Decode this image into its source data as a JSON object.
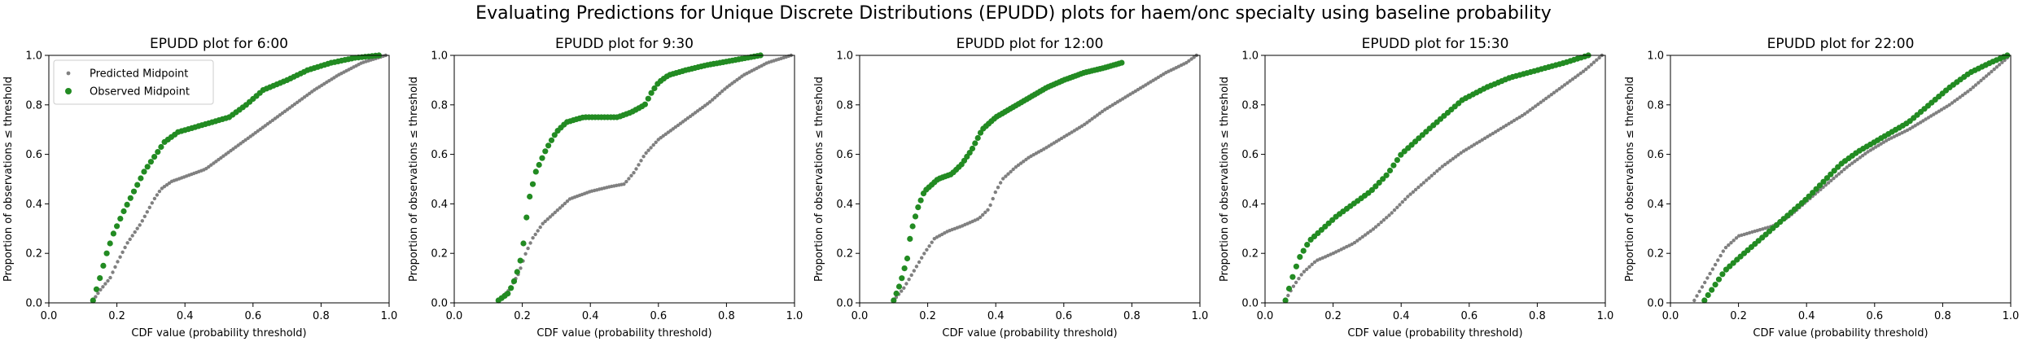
{
  "figure": {
    "suptitle": "Evaluating Predictions for Unique Discrete Distributions (EPUDD) plots for haem/onc specialty using baseline probability"
  },
  "colors": {
    "predicted": "#808080",
    "observed": "#228B22"
  },
  "chart_data": [
    {
      "type": "scatter",
      "title": "EPUDD plot for 6:00",
      "xlabel": "CDF value (probability threshold)",
      "ylabel": "Proportion of observations ≤ threshold",
      "xlim": [
        0,
        1
      ],
      "ylim": [
        0,
        1
      ],
      "xticks": [
        "0.0",
        "0.2",
        "0.4",
        "0.6",
        "0.8",
        "1.0"
      ],
      "yticks": [
        "0.0",
        "0.2",
        "0.4",
        "0.6",
        "0.8",
        "1.0"
      ],
      "legend": {
        "position": "upper-left",
        "entries": [
          "Predicted Midpoint",
          "Observed Midpoint"
        ]
      },
      "series": [
        {
          "name": "Predicted Midpoint",
          "knots": [
            [
              0.13,
              0.01
            ],
            [
              0.15,
              0.05
            ],
            [
              0.18,
              0.1
            ],
            [
              0.2,
              0.16
            ],
            [
              0.23,
              0.24
            ],
            [
              0.27,
              0.32
            ],
            [
              0.31,
              0.42
            ],
            [
              0.33,
              0.46
            ],
            [
              0.36,
              0.49
            ],
            [
              0.4,
              0.51
            ],
            [
              0.46,
              0.54
            ],
            [
              0.5,
              0.58
            ],
            [
              0.55,
              0.63
            ],
            [
              0.6,
              0.68
            ],
            [
              0.66,
              0.74
            ],
            [
              0.72,
              0.8
            ],
            [
              0.78,
              0.86
            ],
            [
              0.85,
              0.92
            ],
            [
              0.92,
              0.97
            ],
            [
              0.99,
              1.0
            ]
          ]
        },
        {
          "name": "Observed Midpoint",
          "knots": [
            [
              0.13,
              0.01
            ],
            [
              0.15,
              0.1
            ],
            [
              0.17,
              0.2
            ],
            [
              0.19,
              0.28
            ],
            [
              0.22,
              0.37
            ],
            [
              0.25,
              0.45
            ],
            [
              0.28,
              0.53
            ],
            [
              0.31,
              0.59
            ],
            [
              0.34,
              0.65
            ],
            [
              0.38,
              0.69
            ],
            [
              0.43,
              0.71
            ],
            [
              0.48,
              0.73
            ],
            [
              0.53,
              0.75
            ],
            [
              0.58,
              0.8
            ],
            [
              0.63,
              0.86
            ],
            [
              0.7,
              0.9
            ],
            [
              0.76,
              0.94
            ],
            [
              0.83,
              0.97
            ],
            [
              0.9,
              0.99
            ],
            [
              0.97,
              1.0
            ]
          ]
        }
      ]
    },
    {
      "type": "scatter",
      "title": "EPUDD plot for 9:30",
      "xlabel": "CDF value (probability threshold)",
      "ylabel": "Proportion of observations ≤ threshold",
      "xlim": [
        0,
        1
      ],
      "ylim": [
        0,
        1
      ],
      "xticks": [
        "0.0",
        "0.2",
        "0.4",
        "0.6",
        "0.8",
        "1.0"
      ],
      "yticks": [
        "0.0",
        "0.2",
        "0.4",
        "0.6",
        "0.8",
        "1.0"
      ],
      "series": [
        {
          "name": "Predicted Midpoint",
          "knots": [
            [
              0.13,
              0.01
            ],
            [
              0.16,
              0.05
            ],
            [
              0.19,
              0.12
            ],
            [
              0.21,
              0.2
            ],
            [
              0.23,
              0.26
            ],
            [
              0.26,
              0.32
            ],
            [
              0.3,
              0.37
            ],
            [
              0.34,
              0.42
            ],
            [
              0.4,
              0.45
            ],
            [
              0.46,
              0.47
            ],
            [
              0.5,
              0.48
            ],
            [
              0.53,
              0.53
            ],
            [
              0.56,
              0.6
            ],
            [
              0.6,
              0.66
            ],
            [
              0.65,
              0.71
            ],
            [
              0.7,
              0.76
            ],
            [
              0.75,
              0.81
            ],
            [
              0.8,
              0.87
            ],
            [
              0.85,
              0.92
            ],
            [
              0.92,
              0.97
            ],
            [
              0.99,
              1.0
            ]
          ]
        },
        {
          "name": "Observed Midpoint",
          "knots": [
            [
              0.13,
              0.01
            ],
            [
              0.16,
              0.04
            ],
            [
              0.18,
              0.1
            ],
            [
              0.2,
              0.2
            ],
            [
              0.21,
              0.32
            ],
            [
              0.22,
              0.42
            ],
            [
              0.24,
              0.53
            ],
            [
              0.27,
              0.62
            ],
            [
              0.3,
              0.69
            ],
            [
              0.33,
              0.73
            ],
            [
              0.38,
              0.75
            ],
            [
              0.48,
              0.75
            ],
            [
              0.52,
              0.77
            ],
            [
              0.56,
              0.8
            ],
            [
              0.58,
              0.85
            ],
            [
              0.6,
              0.89
            ],
            [
              0.63,
              0.92
            ],
            [
              0.68,
              0.94
            ],
            [
              0.74,
              0.96
            ],
            [
              0.82,
              0.98
            ],
            [
              0.9,
              1.0
            ]
          ]
        }
      ]
    },
    {
      "type": "scatter",
      "title": "EPUDD plot for 12:00",
      "xlabel": "CDF value (probability threshold)",
      "ylabel": "Proportion of observations ≤ threshold",
      "xlim": [
        0,
        1
      ],
      "ylim": [
        0,
        1
      ],
      "xticks": [
        "0.0",
        "0.2",
        "0.4",
        "0.6",
        "0.8",
        "1.0"
      ],
      "yticks": [
        "0.0",
        "0.2",
        "0.4",
        "0.6",
        "0.8",
        "1.0"
      ],
      "series": [
        {
          "name": "Predicted Midpoint",
          "knots": [
            [
              0.1,
              0.01
            ],
            [
              0.13,
              0.06
            ],
            [
              0.16,
              0.13
            ],
            [
              0.19,
              0.2
            ],
            [
              0.22,
              0.26
            ],
            [
              0.26,
              0.29
            ],
            [
              0.3,
              0.31
            ],
            [
              0.35,
              0.34
            ],
            [
              0.38,
              0.38
            ],
            [
              0.4,
              0.45
            ],
            [
              0.42,
              0.5
            ],
            [
              0.46,
              0.55
            ],
            [
              0.5,
              0.59
            ],
            [
              0.54,
              0.62
            ],
            [
              0.6,
              0.67
            ],
            [
              0.66,
              0.72
            ],
            [
              0.72,
              0.78
            ],
            [
              0.78,
              0.83
            ],
            [
              0.84,
              0.88
            ],
            [
              0.9,
              0.93
            ],
            [
              0.96,
              0.97
            ],
            [
              0.99,
              1.0
            ]
          ]
        },
        {
          "name": "Observed Midpoint",
          "knots": [
            [
              0.1,
              0.01
            ],
            [
              0.12,
              0.08
            ],
            [
              0.14,
              0.18
            ],
            [
              0.15,
              0.28
            ],
            [
              0.17,
              0.38
            ],
            [
              0.19,
              0.45
            ],
            [
              0.23,
              0.5
            ],
            [
              0.27,
              0.52
            ],
            [
              0.3,
              0.56
            ],
            [
              0.33,
              0.62
            ],
            [
              0.36,
              0.7
            ],
            [
              0.4,
              0.75
            ],
            [
              0.45,
              0.79
            ],
            [
              0.5,
              0.83
            ],
            [
              0.55,
              0.87
            ],
            [
              0.6,
              0.9
            ],
            [
              0.66,
              0.93
            ],
            [
              0.72,
              0.95
            ],
            [
              0.77,
              0.97
            ]
          ]
        }
      ]
    },
    {
      "type": "scatter",
      "title": "EPUDD plot for 15:30",
      "xlabel": "CDF value (probability threshold)",
      "ylabel": "Proportion of observations ≤ threshold",
      "xlim": [
        0,
        1
      ],
      "ylim": [
        0,
        1
      ],
      "xticks": [
        "0.0",
        "0.2",
        "0.4",
        "0.6",
        "0.8",
        "1.0"
      ],
      "yticks": [
        "0.0",
        "0.2",
        "0.4",
        "0.6",
        "0.8",
        "1.0"
      ],
      "series": [
        {
          "name": "Predicted Midpoint",
          "knots": [
            [
              0.06,
              0.01
            ],
            [
              0.08,
              0.06
            ],
            [
              0.11,
              0.12
            ],
            [
              0.15,
              0.17
            ],
            [
              0.2,
              0.2
            ],
            [
              0.26,
              0.24
            ],
            [
              0.32,
              0.3
            ],
            [
              0.37,
              0.36
            ],
            [
              0.42,
              0.43
            ],
            [
              0.47,
              0.49
            ],
            [
              0.52,
              0.55
            ],
            [
              0.58,
              0.61
            ],
            [
              0.64,
              0.66
            ],
            [
              0.7,
              0.71
            ],
            [
              0.76,
              0.76
            ],
            [
              0.82,
              0.82
            ],
            [
              0.88,
              0.88
            ],
            [
              0.94,
              0.94
            ],
            [
              0.99,
              1.0
            ]
          ]
        },
        {
          "name": "Observed Midpoint",
          "knots": [
            [
              0.06,
              0.01
            ],
            [
              0.08,
              0.1
            ],
            [
              0.1,
              0.18
            ],
            [
              0.13,
              0.25
            ],
            [
              0.17,
              0.3
            ],
            [
              0.21,
              0.35
            ],
            [
              0.26,
              0.4
            ],
            [
              0.31,
              0.45
            ],
            [
              0.36,
              0.52
            ],
            [
              0.4,
              0.6
            ],
            [
              0.44,
              0.65
            ],
            [
              0.48,
              0.7
            ],
            [
              0.53,
              0.76
            ],
            [
              0.58,
              0.82
            ],
            [
              0.65,
              0.87
            ],
            [
              0.72,
              0.91
            ],
            [
              0.8,
              0.94
            ],
            [
              0.88,
              0.97
            ],
            [
              0.95,
              1.0
            ]
          ]
        }
      ]
    },
    {
      "type": "scatter",
      "title": "EPUDD plot for 22:00",
      "xlabel": "CDF value (probability threshold)",
      "ylabel": "Proportion of observations ≤ threshold",
      "xlim": [
        0,
        1
      ],
      "ylim": [
        0,
        1
      ],
      "xticks": [
        "0.0",
        "0.2",
        "0.4",
        "0.6",
        "0.8",
        "1.0"
      ],
      "yticks": [
        "0.0",
        "0.2",
        "0.4",
        "0.6",
        "0.8",
        "1.0"
      ],
      "series": [
        {
          "name": "Predicted Midpoint",
          "knots": [
            [
              0.07,
              0.01
            ],
            [
              0.1,
              0.08
            ],
            [
              0.13,
              0.15
            ],
            [
              0.16,
              0.22
            ],
            [
              0.2,
              0.27
            ],
            [
              0.25,
              0.29
            ],
            [
              0.3,
              0.31
            ],
            [
              0.35,
              0.35
            ],
            [
              0.4,
              0.41
            ],
            [
              0.46,
              0.48
            ],
            [
              0.52,
              0.55
            ],
            [
              0.58,
              0.61
            ],
            [
              0.64,
              0.66
            ],
            [
              0.7,
              0.7
            ],
            [
              0.76,
              0.75
            ],
            [
              0.82,
              0.8
            ],
            [
              0.88,
              0.86
            ],
            [
              0.94,
              0.93
            ],
            [
              0.99,
              0.99
            ]
          ]
        },
        {
          "name": "Observed Midpoint",
          "knots": [
            [
              0.1,
              0.01
            ],
            [
              0.13,
              0.07
            ],
            [
              0.16,
              0.13
            ],
            [
              0.2,
              0.18
            ],
            [
              0.25,
              0.24
            ],
            [
              0.3,
              0.3
            ],
            [
              0.35,
              0.36
            ],
            [
              0.4,
              0.42
            ],
            [
              0.45,
              0.49
            ],
            [
              0.5,
              0.56
            ],
            [
              0.55,
              0.61
            ],
            [
              0.6,
              0.65
            ],
            [
              0.65,
              0.69
            ],
            [
              0.7,
              0.73
            ],
            [
              0.76,
              0.8
            ],
            [
              0.82,
              0.87
            ],
            [
              0.88,
              0.93
            ],
            [
              0.94,
              0.97
            ],
            [
              0.99,
              1.0
            ]
          ]
        }
      ]
    }
  ]
}
